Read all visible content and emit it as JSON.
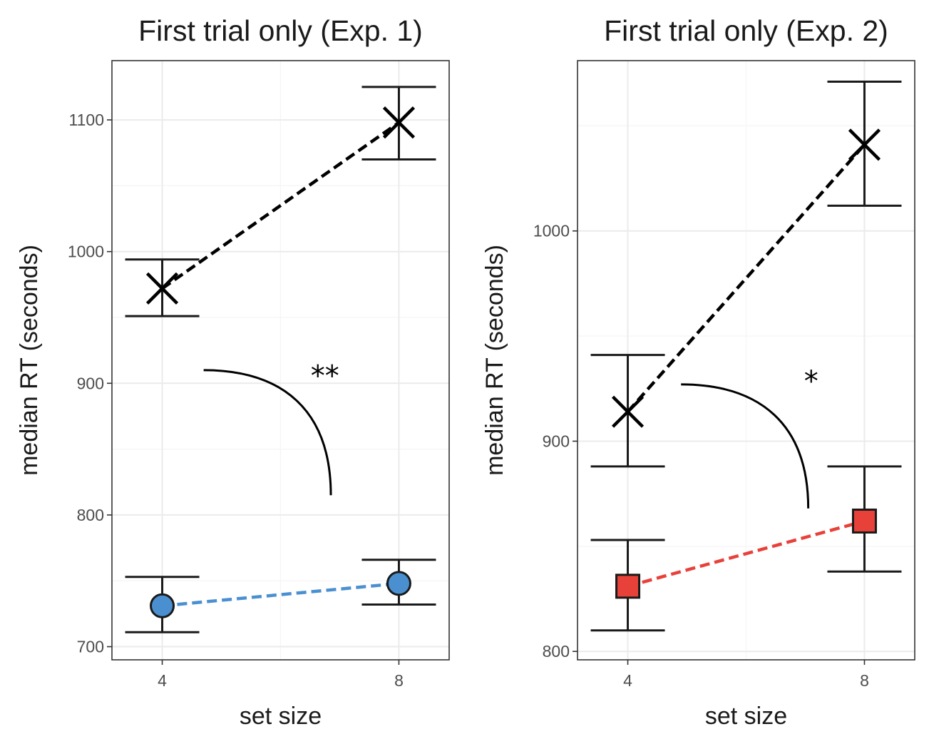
{
  "colors": {
    "background": "#ffffff",
    "grid_major": "#ebebeb",
    "grid_minor": "#f5f5f5",
    "panel_border": "#333333",
    "x_series": "#000000",
    "exp1_low_series": "#4a90d0",
    "exp2_low_series": "#e8413a",
    "marker_edge": "#1a1a1a"
  },
  "chart_data": [
    {
      "type": "line",
      "title": "First trial only (Exp. 1)",
      "xlabel": "set size",
      "ylabel": "median RT (seconds)",
      "x_ticks": [
        4,
        8
      ],
      "y_ticks": [
        700,
        800,
        900,
        1000,
        1100
      ],
      "xlim": [
        3.15,
        8.85
      ],
      "ylim": [
        690,
        1145
      ],
      "grid": true,
      "series": [
        {
          "marker": "x",
          "color": "#000000",
          "line_style": "dashed",
          "x": [
            4,
            8
          ],
          "y": [
            972,
            1098
          ],
          "ymin": [
            951,
            1070
          ],
          "ymax": [
            994,
            1125
          ]
        },
        {
          "marker": "circle",
          "color": "#4a90d0",
          "line_style": "dashed",
          "x": [
            4,
            8
          ],
          "y": [
            731,
            748
          ],
          "ymin": [
            711,
            732
          ],
          "ymax": [
            753,
            766
          ]
        }
      ],
      "annotation": {
        "text": "**",
        "x": 6.75,
        "y": 908,
        "arc": {
          "start": [
            4.7,
            910
          ],
          "end": [
            6.85,
            815
          ]
        }
      }
    },
    {
      "type": "line",
      "title": "First trial only (Exp. 2)",
      "xlabel": "set size",
      "ylabel": "median RT (seconds)",
      "x_ticks": [
        4,
        8
      ],
      "y_ticks": [
        800,
        900,
        1000
      ],
      "xlim": [
        3.15,
        8.85
      ],
      "ylim": [
        796,
        1081
      ],
      "grid": true,
      "series": [
        {
          "marker": "x",
          "color": "#000000",
          "line_style": "dashed",
          "x": [
            4,
            8
          ],
          "y": [
            914,
            1041
          ],
          "ymin": [
            888,
            1012
          ],
          "ymax": [
            941,
            1071
          ]
        },
        {
          "marker": "square",
          "color": "#e8413a",
          "line_style": "dashed",
          "x": [
            4,
            8
          ],
          "y": [
            831,
            862
          ],
          "ymin": [
            810,
            838
          ],
          "ymax": [
            853,
            888
          ]
        }
      ],
      "annotation": {
        "text": "*",
        "x": 7.1,
        "y": 930,
        "arc": {
          "start": [
            4.9,
            927
          ],
          "end": [
            7.05,
            868
          ]
        }
      }
    }
  ]
}
